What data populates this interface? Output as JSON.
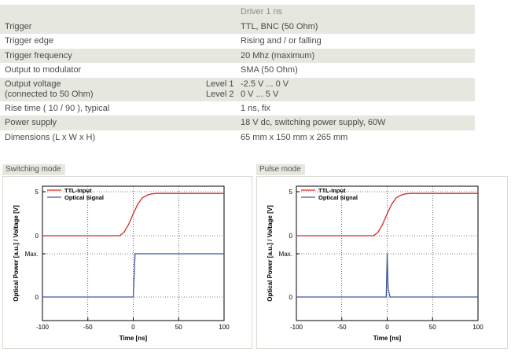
{
  "table": {
    "header": "Driver 1 ns",
    "rows": [
      {
        "label": "Trigger",
        "value": "TTL, BNC (50 Ohm)"
      },
      {
        "label": "Trigger edge",
        "value": "Rising and / or falling"
      },
      {
        "label": "Trigger frequency",
        "value": "20 Mhz (maximum)"
      },
      {
        "label": "Output to modulator",
        "value": "SMA (50 Ohm)"
      }
    ],
    "output_voltage": {
      "label_line1": "Output voltage",
      "label_line2": "(connected to 50 Ohm)",
      "level1_label": "Level 1",
      "level2_label": "Level 2",
      "level1_value": "-2.5 V ... 0 V",
      "level2_value": "0 V ... 5 V"
    },
    "rows2": [
      {
        "label": "Rise time ( 10 / 90 ), typical",
        "value": "1 ns, fix"
      },
      {
        "label": "Power supply",
        "value": "18 V dc, switching power supply, 60W"
      },
      {
        "label": "Dimensions (L x W x H)",
        "value": "65 mm x 150 mm x 265 mm"
      }
    ]
  },
  "panels": [
    {
      "tab": "Switching mode"
    },
    {
      "tab": "Pulse mode"
    }
  ],
  "chart_data": [
    {
      "type": "line",
      "title": "Switching mode",
      "xlabel": "Time [ns]",
      "ylabel": "Optical Power [a.u.]  /  Voltage [V]",
      "xlim": [
        -100,
        100
      ],
      "x_ticks": [
        "-100",
        "-50",
        "0",
        "50",
        "100"
      ],
      "y_ticks": [
        "5",
        "0",
        "Max.",
        "0"
      ],
      "grid": true,
      "legend_position": "top-left",
      "series": [
        {
          "name": "TTL-Input",
          "color": "#d42b23",
          "x": [
            -100,
            -15,
            -10,
            -5,
            0,
            5,
            10,
            15,
            20,
            25,
            100
          ],
          "y": [
            0,
            0,
            0.4,
            1.3,
            2.5,
            3.6,
            4.3,
            4.6,
            4.75,
            4.8,
            4.8
          ]
        },
        {
          "name": "Optical Signal",
          "color": "#3d5a9e",
          "x": [
            -100,
            0,
            1,
            2,
            100
          ],
          "y": [
            0,
            0,
            0.5,
            1,
            1
          ]
        }
      ]
    },
    {
      "type": "line",
      "title": "Pulse mode",
      "xlabel": "Time [ns]",
      "ylabel": "Optical Power [a.u.]  /  Voltage [V]",
      "xlim": [
        -100,
        100
      ],
      "x_ticks": [
        "-100",
        "-50",
        "0",
        "50",
        "100"
      ],
      "y_ticks": [
        "5",
        "0",
        "Max.",
        "0"
      ],
      "grid": true,
      "legend_position": "top-left",
      "series": [
        {
          "name": "TTL-Input",
          "color": "#d42b23",
          "x": [
            -100,
            -15,
            -10,
            -5,
            0,
            5,
            10,
            15,
            20,
            25,
            100
          ],
          "y": [
            0,
            0,
            0.4,
            1.3,
            2.5,
            3.6,
            4.3,
            4.6,
            4.75,
            4.8,
            4.8
          ]
        },
        {
          "name": "Optical Signal",
          "color": "#3d5a9e",
          "x": [
            -100,
            -1,
            0,
            1,
            3,
            100
          ],
          "y": [
            0,
            0,
            1,
            0.2,
            0,
            0
          ]
        }
      ]
    }
  ]
}
